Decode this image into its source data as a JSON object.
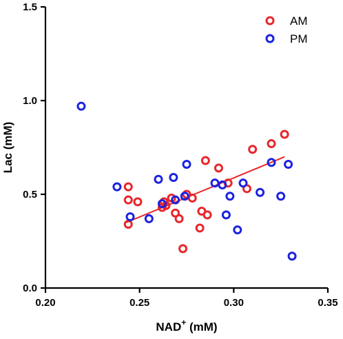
{
  "chart_data": {
    "type": "scatter",
    "xlabel": {
      "base": "NAD",
      "sup": "+",
      "unit": " (mM)"
    },
    "ylabel": "Lac (mM)",
    "xlim": [
      0.2,
      0.35
    ],
    "ylim": [
      0.0,
      1.5
    ],
    "x_ticks": [
      "0.20",
      "0.25",
      "0.30",
      "0.35"
    ],
    "y_ticks": [
      "0.0",
      "0.5",
      "1.0",
      "1.5"
    ],
    "legend_position": "top-right",
    "grid": false,
    "series": [
      {
        "name": "AM",
        "color": "#e8262a",
        "points": [
          [
            0.244,
            0.54
          ],
          [
            0.244,
            0.47
          ],
          [
            0.244,
            0.34
          ],
          [
            0.249,
            0.46
          ],
          [
            0.262,
            0.43
          ],
          [
            0.263,
            0.46
          ],
          [
            0.264,
            0.44
          ],
          [
            0.267,
            0.48
          ],
          [
            0.269,
            0.4
          ],
          [
            0.271,
            0.37
          ],
          [
            0.273,
            0.21
          ],
          [
            0.275,
            0.5
          ],
          [
            0.278,
            0.48
          ],
          [
            0.282,
            0.32
          ],
          [
            0.283,
            0.41
          ],
          [
            0.285,
            0.68
          ],
          [
            0.286,
            0.39
          ],
          [
            0.292,
            0.64
          ],
          [
            0.297,
            0.56
          ],
          [
            0.307,
            0.53
          ],
          [
            0.31,
            0.74
          ],
          [
            0.32,
            0.77
          ],
          [
            0.327,
            0.82
          ]
        ]
      },
      {
        "name": "PM",
        "color": "#1b22e0",
        "points": [
          [
            0.219,
            0.97
          ],
          [
            0.238,
            0.54
          ],
          [
            0.245,
            0.38
          ],
          [
            0.255,
            0.37
          ],
          [
            0.26,
            0.58
          ],
          [
            0.262,
            0.45
          ],
          [
            0.268,
            0.59
          ],
          [
            0.269,
            0.47
          ],
          [
            0.274,
            0.49
          ],
          [
            0.275,
            0.66
          ],
          [
            0.29,
            0.56
          ],
          [
            0.294,
            0.55
          ],
          [
            0.296,
            0.39
          ],
          [
            0.298,
            0.49
          ],
          [
            0.302,
            0.31
          ],
          [
            0.305,
            0.56
          ],
          [
            0.314,
            0.51
          ],
          [
            0.32,
            0.67
          ],
          [
            0.325,
            0.49
          ],
          [
            0.329,
            0.66
          ],
          [
            0.331,
            0.17
          ]
        ]
      }
    ],
    "fit_line": {
      "color": "#e8262a",
      "x": [
        0.243,
        0.327
      ],
      "y": [
        0.35,
        0.7
      ]
    }
  }
}
